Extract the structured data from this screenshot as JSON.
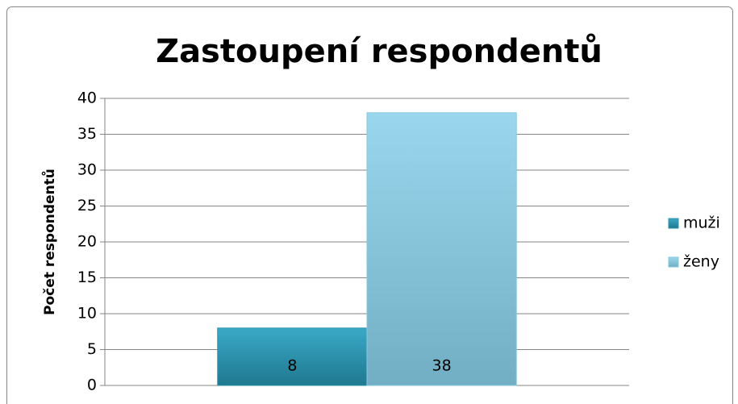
{
  "chart_data": {
    "type": "bar",
    "title": "Zastoupení respondentů",
    "y_label": "Počet respondentů",
    "categories": [
      null
    ],
    "series": [
      {
        "name": "muži",
        "color": "#2b93ae",
        "values": [
          8
        ]
      },
      {
        "name": "ženy",
        "color": "#86c7de",
        "values": [
          38
        ]
      }
    ],
    "ylim": [
      0,
      40
    ],
    "yticks": [
      0,
      5,
      10,
      15,
      20,
      25,
      30,
      35,
      40
    ],
    "grid": true,
    "legend": "right",
    "data_labels": true
  }
}
